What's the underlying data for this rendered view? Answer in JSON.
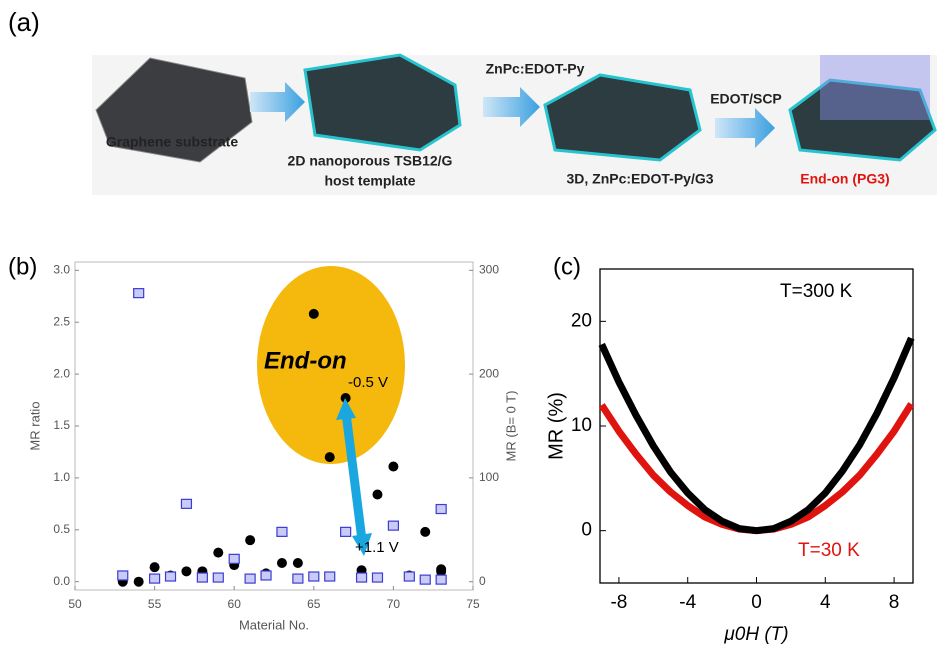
{
  "diagram": {
    "label": "(a)",
    "stages": [
      {
        "caption": "Graphene substrate"
      },
      {
        "caption": [
          "2D nanoporous TSB12/G",
          "host template"
        ]
      },
      {
        "caption": "3D, ZnPc:EDOT-Py/G3"
      },
      {
        "caption": "End-on (PG3)"
      }
    ],
    "steps": [
      "ZnPc:EDOT-Py",
      "EDOT/SCP"
    ]
  },
  "chart_data": [
    {
      "type": "scatter",
      "panel_label": "(b)",
      "xlabel": "Material No.",
      "ylabel": "MR ratio",
      "y2label": "MR (B= 0 T)",
      "annotations": [
        "End-on",
        "-0.5 V",
        "+1.1 V"
      ],
      "x": [
        53,
        54,
        55,
        56,
        57,
        58,
        59,
        60,
        61,
        62,
        63,
        64,
        65,
        66,
        67,
        68,
        69,
        70,
        71,
        72,
        73,
        73
      ],
      "series": [
        {
          "color": "#000000",
          "values": [
            0.0,
            0.0,
            0.14,
            0.06,
            0.1,
            0.1,
            0.28,
            0.16,
            0.4,
            0.08,
            0.18,
            0.18,
            2.58,
            1.2,
            1.77,
            0.11,
            0.84,
            1.11,
            0.06,
            0.48,
            0.12,
            0.1
          ]
        },
        {
          "color": "#3b3bd6",
          "axis": "y2",
          "values": [
            6,
            278,
            3,
            5,
            75,
            4,
            4,
            22,
            3,
            6,
            48,
            3,
            5,
            5,
            48,
            4,
            4,
            54,
            5,
            2,
            70,
            2
          ]
        }
      ],
      "xlim": [
        50,
        75
      ],
      "xticks": [
        50,
        55,
        60,
        65,
        70,
        75
      ],
      "ylim": [
        -0.08,
        3.08
      ],
      "yticks": [
        {
          "value": 0,
          "label": "0.0"
        },
        0.5,
        {
          "value": 1,
          "label": "1.0"
        },
        1.5,
        {
          "value": 2,
          "label": "2.0"
        },
        2.5,
        {
          "value": 3,
          "label": "3.0"
        }
      ],
      "y2lim": [
        -8,
        308
      ],
      "y2ticks": [
        0,
        100,
        200,
        300
      ]
    },
    {
      "type": "line",
      "panel_label": "(c)",
      "xlabel": "μ0H (T)",
      "ylabel": "MR (%)",
      "x": [
        -9,
        -8,
        -7,
        -6,
        -5,
        -4,
        -3,
        -2,
        -1,
        0,
        1,
        2,
        3,
        4,
        5,
        6,
        7,
        8,
        9
      ],
      "series": [
        {
          "name": "T=300 K",
          "color": "#000000",
          "values": [
            17.8,
            14.2,
            11.0,
            8.1,
            5.6,
            3.6,
            2.0,
            0.9,
            0.2,
            0,
            0.2,
            0.9,
            2.0,
            3.6,
            5.7,
            8.2,
            11.2,
            14.6,
            18.4
          ]
        },
        {
          "name": "T=30 K",
          "color": "#e0140f",
          "values": [
            12.0,
            9.5,
            7.3,
            5.3,
            3.7,
            2.4,
            1.3,
            0.6,
            0.15,
            0,
            0.15,
            0.6,
            1.3,
            2.4,
            3.7,
            5.3,
            7.3,
            9.5,
            12.1
          ]
        }
      ],
      "xlim": [
        -9.1,
        9.1
      ],
      "xticks": [
        -8,
        -4,
        0,
        4,
        8
      ],
      "ylim": [
        -5,
        25
      ],
      "yticks": [
        0,
        10,
        20
      ]
    }
  ]
}
